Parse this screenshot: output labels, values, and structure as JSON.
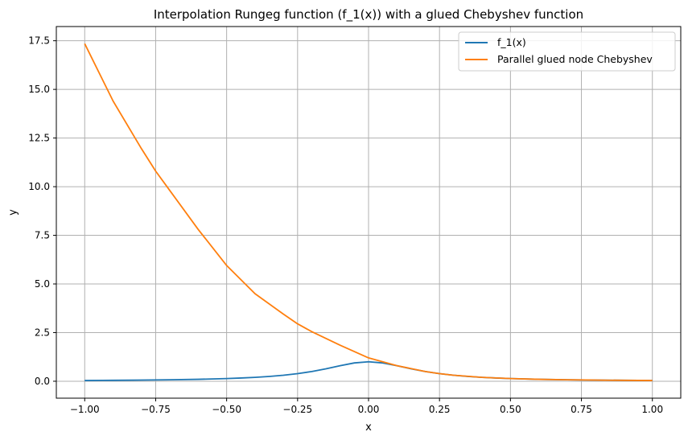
{
  "chart_data": {
    "type": "line",
    "title": "Interpolation Rungeg function (f_1(x)) with a glued Chebyshev function",
    "xlabel": "x",
    "ylabel": "y",
    "xlim": [
      -1.1,
      1.1
    ],
    "ylim": [
      -0.87,
      18.23
    ],
    "grid": true,
    "legend_position": "top-right",
    "xticks": [
      -1.0,
      -0.75,
      -0.5,
      -0.25,
      0.0,
      0.25,
      0.5,
      0.75,
      1.0
    ],
    "xtick_labels": [
      "−1.00",
      "−0.75",
      "−0.50",
      "−0.25",
      "0.00",
      "0.25",
      "0.50",
      "0.75",
      "1.00"
    ],
    "yticks": [
      0,
      2.5,
      5,
      7.5,
      10,
      12.5,
      15,
      17.5
    ],
    "ytick_labels": [
      "0.0",
      "2.5",
      "5.0",
      "7.5",
      "10.0",
      "12.5",
      "15.0",
      "17.5"
    ],
    "series": [
      {
        "name": "f_1(x)",
        "color": "#1f77b4",
        "x": [
          -1.0,
          -0.9,
          -0.8,
          -0.7,
          -0.6,
          -0.5,
          -0.45,
          -0.4,
          -0.35,
          -0.3,
          -0.25,
          -0.2,
          -0.15,
          -0.1,
          -0.05,
          0.0,
          0.05,
          0.1,
          0.15,
          0.2,
          0.25,
          0.3,
          0.35,
          0.4,
          0.45,
          0.5,
          0.6,
          0.7,
          0.8,
          0.9,
          1.0
        ],
        "y": [
          0.038,
          0.047,
          0.059,
          0.075,
          0.1,
          0.138,
          0.165,
          0.2,
          0.246,
          0.308,
          0.39,
          0.5,
          0.64,
          0.8,
          0.941,
          1.0,
          0.941,
          0.8,
          0.64,
          0.5,
          0.39,
          0.308,
          0.246,
          0.2,
          0.165,
          0.138,
          0.1,
          0.075,
          0.059,
          0.047,
          0.038
        ]
      },
      {
        "name": "Parallel glued node Chebyshev",
        "color": "#ff7f0e",
        "x": [
          -1.0,
          -0.9,
          -0.8,
          -0.75,
          -0.7,
          -0.6,
          -0.5,
          -0.4,
          -0.3,
          -0.25,
          -0.2,
          -0.1,
          0.0,
          0.05,
          0.1,
          0.2,
          0.25,
          0.3,
          0.4,
          0.5,
          0.6,
          0.7,
          0.8,
          0.9,
          1.0
        ],
        "y": [
          17.35,
          14.4,
          11.95,
          10.8,
          9.8,
          7.8,
          5.95,
          4.5,
          3.45,
          2.95,
          2.55,
          1.85,
          1.2,
          1.0,
          0.8,
          0.5,
          0.39,
          0.308,
          0.2,
          0.138,
          0.1,
          0.075,
          0.059,
          0.047,
          0.038
        ]
      }
    ]
  }
}
